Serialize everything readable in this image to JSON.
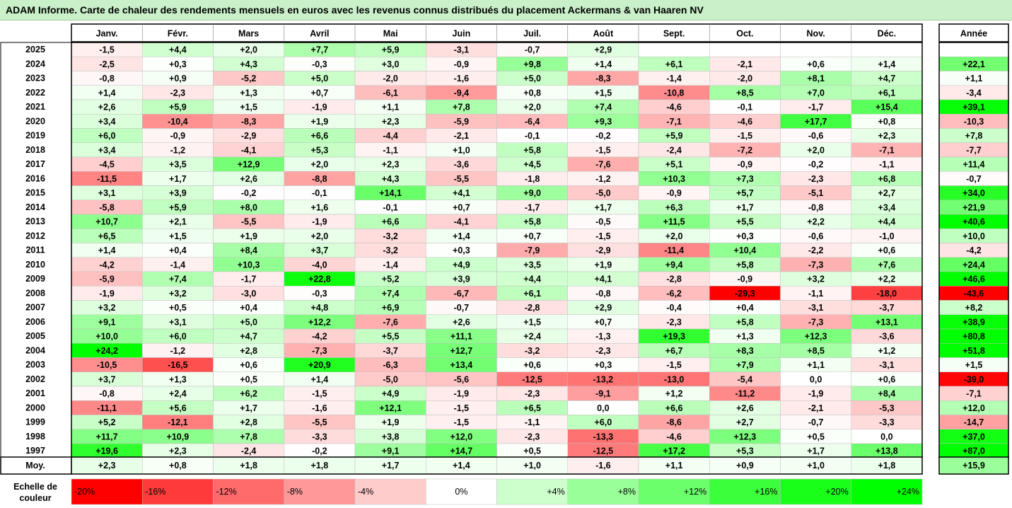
{
  "title": "ADAM Informe. Carte de chaleur des rendements mensuels en euros avec les revenus connus distribués du placement Ackermans & van Haaren NV",
  "chart_data": {
    "type": "heatmap",
    "title": "ADAM Informe. Carte de chaleur des rendements mensuels en euros avec les revenus connus distribués du placement Ackermans & van Haaren NV",
    "columns": [
      "Janv.",
      "Févr.",
      "Mars",
      "Avril",
      "Mai",
      "Juin",
      "Juil.",
      "Août",
      "Sept.",
      "Oct.",
      "Nov.",
      "Déc."
    ],
    "year_column_label": "Année",
    "rows": [
      {
        "year": "2025",
        "values": [
          "-1,5",
          "+4,4",
          "+2,0",
          "+7,7",
          "+5,9",
          "-3,1",
          "-0,7",
          "+2,9",
          "",
          "",
          "",
          ""
        ],
        "annual": ""
      },
      {
        "year": "2024",
        "values": [
          "-2,5",
          "+0,3",
          "+4,3",
          "-0,3",
          "+3,0",
          "-0,9",
          "+9,8",
          "+1,4",
          "+6,1",
          "-2,1",
          "+0,6",
          "+1,4"
        ],
        "annual": "+22,1"
      },
      {
        "year": "2023",
        "values": [
          "-0,8",
          "+0,9",
          "-5,2",
          "+5,0",
          "-2,0",
          "-1,6",
          "+5,0",
          "-8,3",
          "-1,4",
          "-2,0",
          "+8,1",
          "+4,7"
        ],
        "annual": "+1,1"
      },
      {
        "year": "2022",
        "values": [
          "+1,4",
          "-2,3",
          "+1,3",
          "+0,7",
          "-6,1",
          "-9,4",
          "+0,8",
          "+1,5",
          "-10,8",
          "+8,5",
          "+7,0",
          "+6,1"
        ],
        "annual": "-3,4"
      },
      {
        "year": "2021",
        "values": [
          "+2,6",
          "+5,9",
          "+1,5",
          "-1,9",
          "+1,1",
          "+7,8",
          "+2,0",
          "+7,4",
          "-4,6",
          "-0,1",
          "-1,7",
          "+15,4"
        ],
        "annual": "+39,1"
      },
      {
        "year": "2020",
        "values": [
          "+3,4",
          "-10,4",
          "-8,3",
          "+1,9",
          "+2,3",
          "-5,9",
          "-6,4",
          "+9,3",
          "-7,1",
          "-4,6",
          "+17,7",
          "+0,8"
        ],
        "annual": "-10,3"
      },
      {
        "year": "2019",
        "values": [
          "+6,0",
          "-0,9",
          "-2,9",
          "+6,6",
          "-4,4",
          "-2,1",
          "-0,1",
          "-0,2",
          "+5,9",
          "-1,5",
          "-0,6",
          "+2,3"
        ],
        "annual": "+7,8"
      },
      {
        "year": "2018",
        "values": [
          "+3,4",
          "-1,2",
          "-4,1",
          "+5,3",
          "-1,1",
          "+1,0",
          "+5,8",
          "-1,5",
          "-2,4",
          "-7,2",
          "+2,0",
          "-7,1"
        ],
        "annual": "-7,7"
      },
      {
        "year": "2017",
        "values": [
          "-4,5",
          "+3,5",
          "+12,9",
          "+2,0",
          "+2,3",
          "-3,6",
          "+4,5",
          "-7,6",
          "+5,1",
          "-0,9",
          "-0,2",
          "-1,1"
        ],
        "annual": "+11,4"
      },
      {
        "year": "2016",
        "values": [
          "-11,5",
          "+1,7",
          "+2,6",
          "-8,8",
          "+4,3",
          "-5,5",
          "-1,8",
          "-1,2",
          "+10,3",
          "+7,3",
          "-2,3",
          "+6,8"
        ],
        "annual": "-0,7"
      },
      {
        "year": "2015",
        "values": [
          "+3,1",
          "+3,9",
          "-0,2",
          "-0,1",
          "+14,1",
          "+4,1",
          "+9,0",
          "-5,0",
          "-0,9",
          "+5,7",
          "-5,1",
          "+2,7"
        ],
        "annual": "+34,0"
      },
      {
        "year": "2014",
        "values": [
          "-5,8",
          "+5,9",
          "+8,0",
          "+1,6",
          "-0,1",
          "+0,7",
          "-1,7",
          "+1,7",
          "+6,3",
          "+1,7",
          "-0,8",
          "+3,4"
        ],
        "annual": "+21,9"
      },
      {
        "year": "2013",
        "values": [
          "+10,7",
          "+2,1",
          "-5,5",
          "-1,9",
          "+6,6",
          "-4,1",
          "+5,8",
          "-0,5",
          "+11,5",
          "+5,5",
          "+2,2",
          "+4,4"
        ],
        "annual": "+40,6"
      },
      {
        "year": "2012",
        "values": [
          "+6,5",
          "+1,5",
          "+1,9",
          "+2,0",
          "-3,2",
          "+1,4",
          "+0,7",
          "-1,5",
          "+2,0",
          "+0,3",
          "-0,6",
          "-1,0"
        ],
        "annual": "+10,0"
      },
      {
        "year": "2011",
        "values": [
          "+1,4",
          "+0,4",
          "+8,4",
          "+3,7",
          "-3,2",
          "+0,3",
          "-7,9",
          "-2,9",
          "-11,4",
          "+10,4",
          "-2,2",
          "+0,6"
        ],
        "annual": "-4,2"
      },
      {
        "year": "2010",
        "values": [
          "-4,2",
          "-1,4",
          "+10,3",
          "-4,0",
          "-1,4",
          "+4,9",
          "+3,5",
          "+1,9",
          "+9,4",
          "+5,8",
          "-7,3",
          "+7,6"
        ],
        "annual": "+24,4"
      },
      {
        "year": "2009",
        "values": [
          "-5,9",
          "+7,4",
          "-1,7",
          "+22,8",
          "+5,2",
          "+3,9",
          "+4,4",
          "+4,1",
          "-2,8",
          "-0,9",
          "+3,2",
          "+2,2"
        ],
        "annual": "+46,6"
      },
      {
        "year": "2008",
        "values": [
          "-1,9",
          "+3,2",
          "-3,0",
          "-0,3",
          "+7,4",
          "-6,7",
          "+6,1",
          "-0,8",
          "-6,2",
          "-29,3",
          "-1,1",
          "-18,0"
        ],
        "annual": "-43,6"
      },
      {
        "year": "2007",
        "values": [
          "+3,2",
          "+0,5",
          "+0,4",
          "+4,8",
          "+6,9",
          "-0,7",
          "-2,8",
          "+2,9",
          "-0,4",
          "+0,4",
          "-3,1",
          "-3,7"
        ],
        "annual": "+8,2"
      },
      {
        "year": "2006",
        "values": [
          "+9,1",
          "+3,1",
          "+5,0",
          "+12,2",
          "-7,6",
          "+2,6",
          "+1,5",
          "+0,7",
          "-2,3",
          "+5,8",
          "-7,3",
          "+13,1"
        ],
        "annual": "+38,9"
      },
      {
        "year": "2005",
        "values": [
          "+10,0",
          "+6,0",
          "+4,7",
          "-4,2",
          "+5,5",
          "+11,1",
          "+2,4",
          "-1,3",
          "+19,3",
          "+1,3",
          "+12,3",
          "-3,6"
        ],
        "annual": "+80,8"
      },
      {
        "year": "2004",
        "values": [
          "+24,2",
          "-1,2",
          "+2,8",
          "-7,3",
          "-3,7",
          "+12,7",
          "-3,2",
          "-2,3",
          "+6,7",
          "+8,3",
          "+8,5",
          "+1,2"
        ],
        "annual": "+51,8"
      },
      {
        "year": "2003",
        "values": [
          "-10,5",
          "-16,5",
          "+0,6",
          "+20,9",
          "-6,3",
          "+13,4",
          "+0,6",
          "+0,3",
          "-1,5",
          "+7,9",
          "+1,1",
          "-3,1"
        ],
        "annual": "+1,5"
      },
      {
        "year": "2002",
        "values": [
          "+3,7",
          "+1,3",
          "+0,5",
          "+1,4",
          "-5,0",
          "-5,6",
          "-12,5",
          "-13,2",
          "-13,0",
          "-5,4",
          "0,0",
          "+0,6"
        ],
        "annual": "-39,0"
      },
      {
        "year": "2001",
        "values": [
          "-0,8",
          "+2,4",
          "+6,2",
          "-1,5",
          "+4,9",
          "-1,9",
          "-2,3",
          "-9,1",
          "+1,2",
          "-11,2",
          "-1,9",
          "+8,4"
        ],
        "annual": "-7,1"
      },
      {
        "year": "2000",
        "values": [
          "-11,1",
          "+5,6",
          "+1,7",
          "-1,6",
          "+12,1",
          "-1,5",
          "+6,5",
          "0,0",
          "+6,6",
          "+2,6",
          "-2,1",
          "-5,3"
        ],
        "annual": "+12,0"
      },
      {
        "year": "1999",
        "values": [
          "+5,2",
          "-12,1",
          "+2,8",
          "-5,5",
          "+1,9",
          "-1,5",
          "-1,1",
          "+6,0",
          "-8,6",
          "+2,7",
          "-0,7",
          "-3,3"
        ],
        "annual": "-14,7"
      },
      {
        "year": "1998",
        "values": [
          "+11,7",
          "+10,9",
          "+7,8",
          "-3,3",
          "+3,8",
          "+12,0",
          "-2,3",
          "-13,3",
          "-4,6",
          "+12,3",
          "+0,5",
          "0,0"
        ],
        "annual": "+37,0"
      },
      {
        "year": "1997",
        "values": [
          "+19,6",
          "+2,3",
          "-2,4",
          "-0,2",
          "+9,1",
          "+14,7",
          "+0,5",
          "-12,5",
          "+17,2",
          "+5,3",
          "+1,7",
          "+13,8"
        ],
        "annual": "+87,0"
      }
    ],
    "average_row": {
      "label": "Moy.",
      "values": [
        "+2,3",
        "+0,8",
        "+1,8",
        "+1,8",
        "+1,7",
        "+1,4",
        "+1,0",
        "-1,6",
        "+1,1",
        "+0,9",
        "+1,0",
        "+1,8"
      ],
      "annual": "+15,9"
    },
    "legend": {
      "label_line1": "Echelle de",
      "label_line2": "couleur",
      "steps": [
        {
          "label": "-20%",
          "value": -20,
          "color": "#ff0000"
        },
        {
          "label": "-16%",
          "value": -16,
          "color": "#ff3a3a"
        },
        {
          "label": "-12%",
          "value": -12,
          "color": "#ff6b6b"
        },
        {
          "label": "-8%",
          "value": -8,
          "color": "#ff9999"
        },
        {
          "label": "-4%",
          "value": -4,
          "color": "#ffcccc"
        },
        {
          "label": "0%",
          "value": 0,
          "color": "#ffffff"
        },
        {
          "label": "+4%",
          "value": 4,
          "color": "#ccffcc"
        },
        {
          "label": "+8%",
          "value": 8,
          "color": "#99ff99"
        },
        {
          "label": "+12%",
          "value": 12,
          "color": "#6bff6b"
        },
        {
          "label": "+16%",
          "value": 16,
          "color": "#3aff3a"
        },
        {
          "label": "+20%",
          "value": 20,
          "color": "#1aff1a"
        },
        {
          "label": "+24%",
          "value": 24,
          "color": "#00ff00"
        }
      ]
    },
    "colors": {
      "negative_max": "#ff0000",
      "neutral": "#ffffff",
      "positive_max": "#00ff00",
      "title_bg": "#c9f0c9"
    }
  }
}
